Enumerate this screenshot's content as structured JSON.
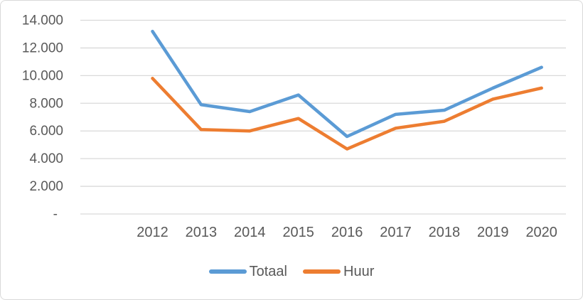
{
  "chart_data": {
    "type": "line",
    "title": "",
    "xlabel": "",
    "ylabel": "",
    "categories": [
      "2012",
      "2013",
      "2014",
      "2015",
      "2016",
      "2017",
      "2018",
      "2019",
      "2020"
    ],
    "series": [
      {
        "name": "Totaal",
        "color": "#5B9BD5",
        "values": [
          13200,
          7900,
          7400,
          8600,
          5600,
          7200,
          7500,
          9100,
          10600
        ]
      },
      {
        "name": "Huur",
        "color": "#ED7D31",
        "values": [
          9800,
          6100,
          6000,
          6900,
          4700,
          6200,
          6700,
          8300,
          9100
        ]
      }
    ],
    "ylim": [
      0,
      14000
    ],
    "y_ticks": [
      {
        "value": 14000,
        "label": "14.000"
      },
      {
        "value": 12000,
        "label": "12.000"
      },
      {
        "value": 10000,
        "label": "10.000"
      },
      {
        "value": 8000,
        "label": "8.000"
      },
      {
        "value": 6000,
        "label": "6.000"
      },
      {
        "value": 4000,
        "label": "4.000"
      },
      {
        "value": 2000,
        "label": "2.000"
      },
      {
        "value": 0,
        "label": "-"
      }
    ],
    "grid": true,
    "legend_position": "bottom",
    "gridline_color": "#D9D9D9",
    "axis_text_color": "#595959",
    "background_color": "#FFFFFF",
    "border_color": "#D9D9D9"
  }
}
